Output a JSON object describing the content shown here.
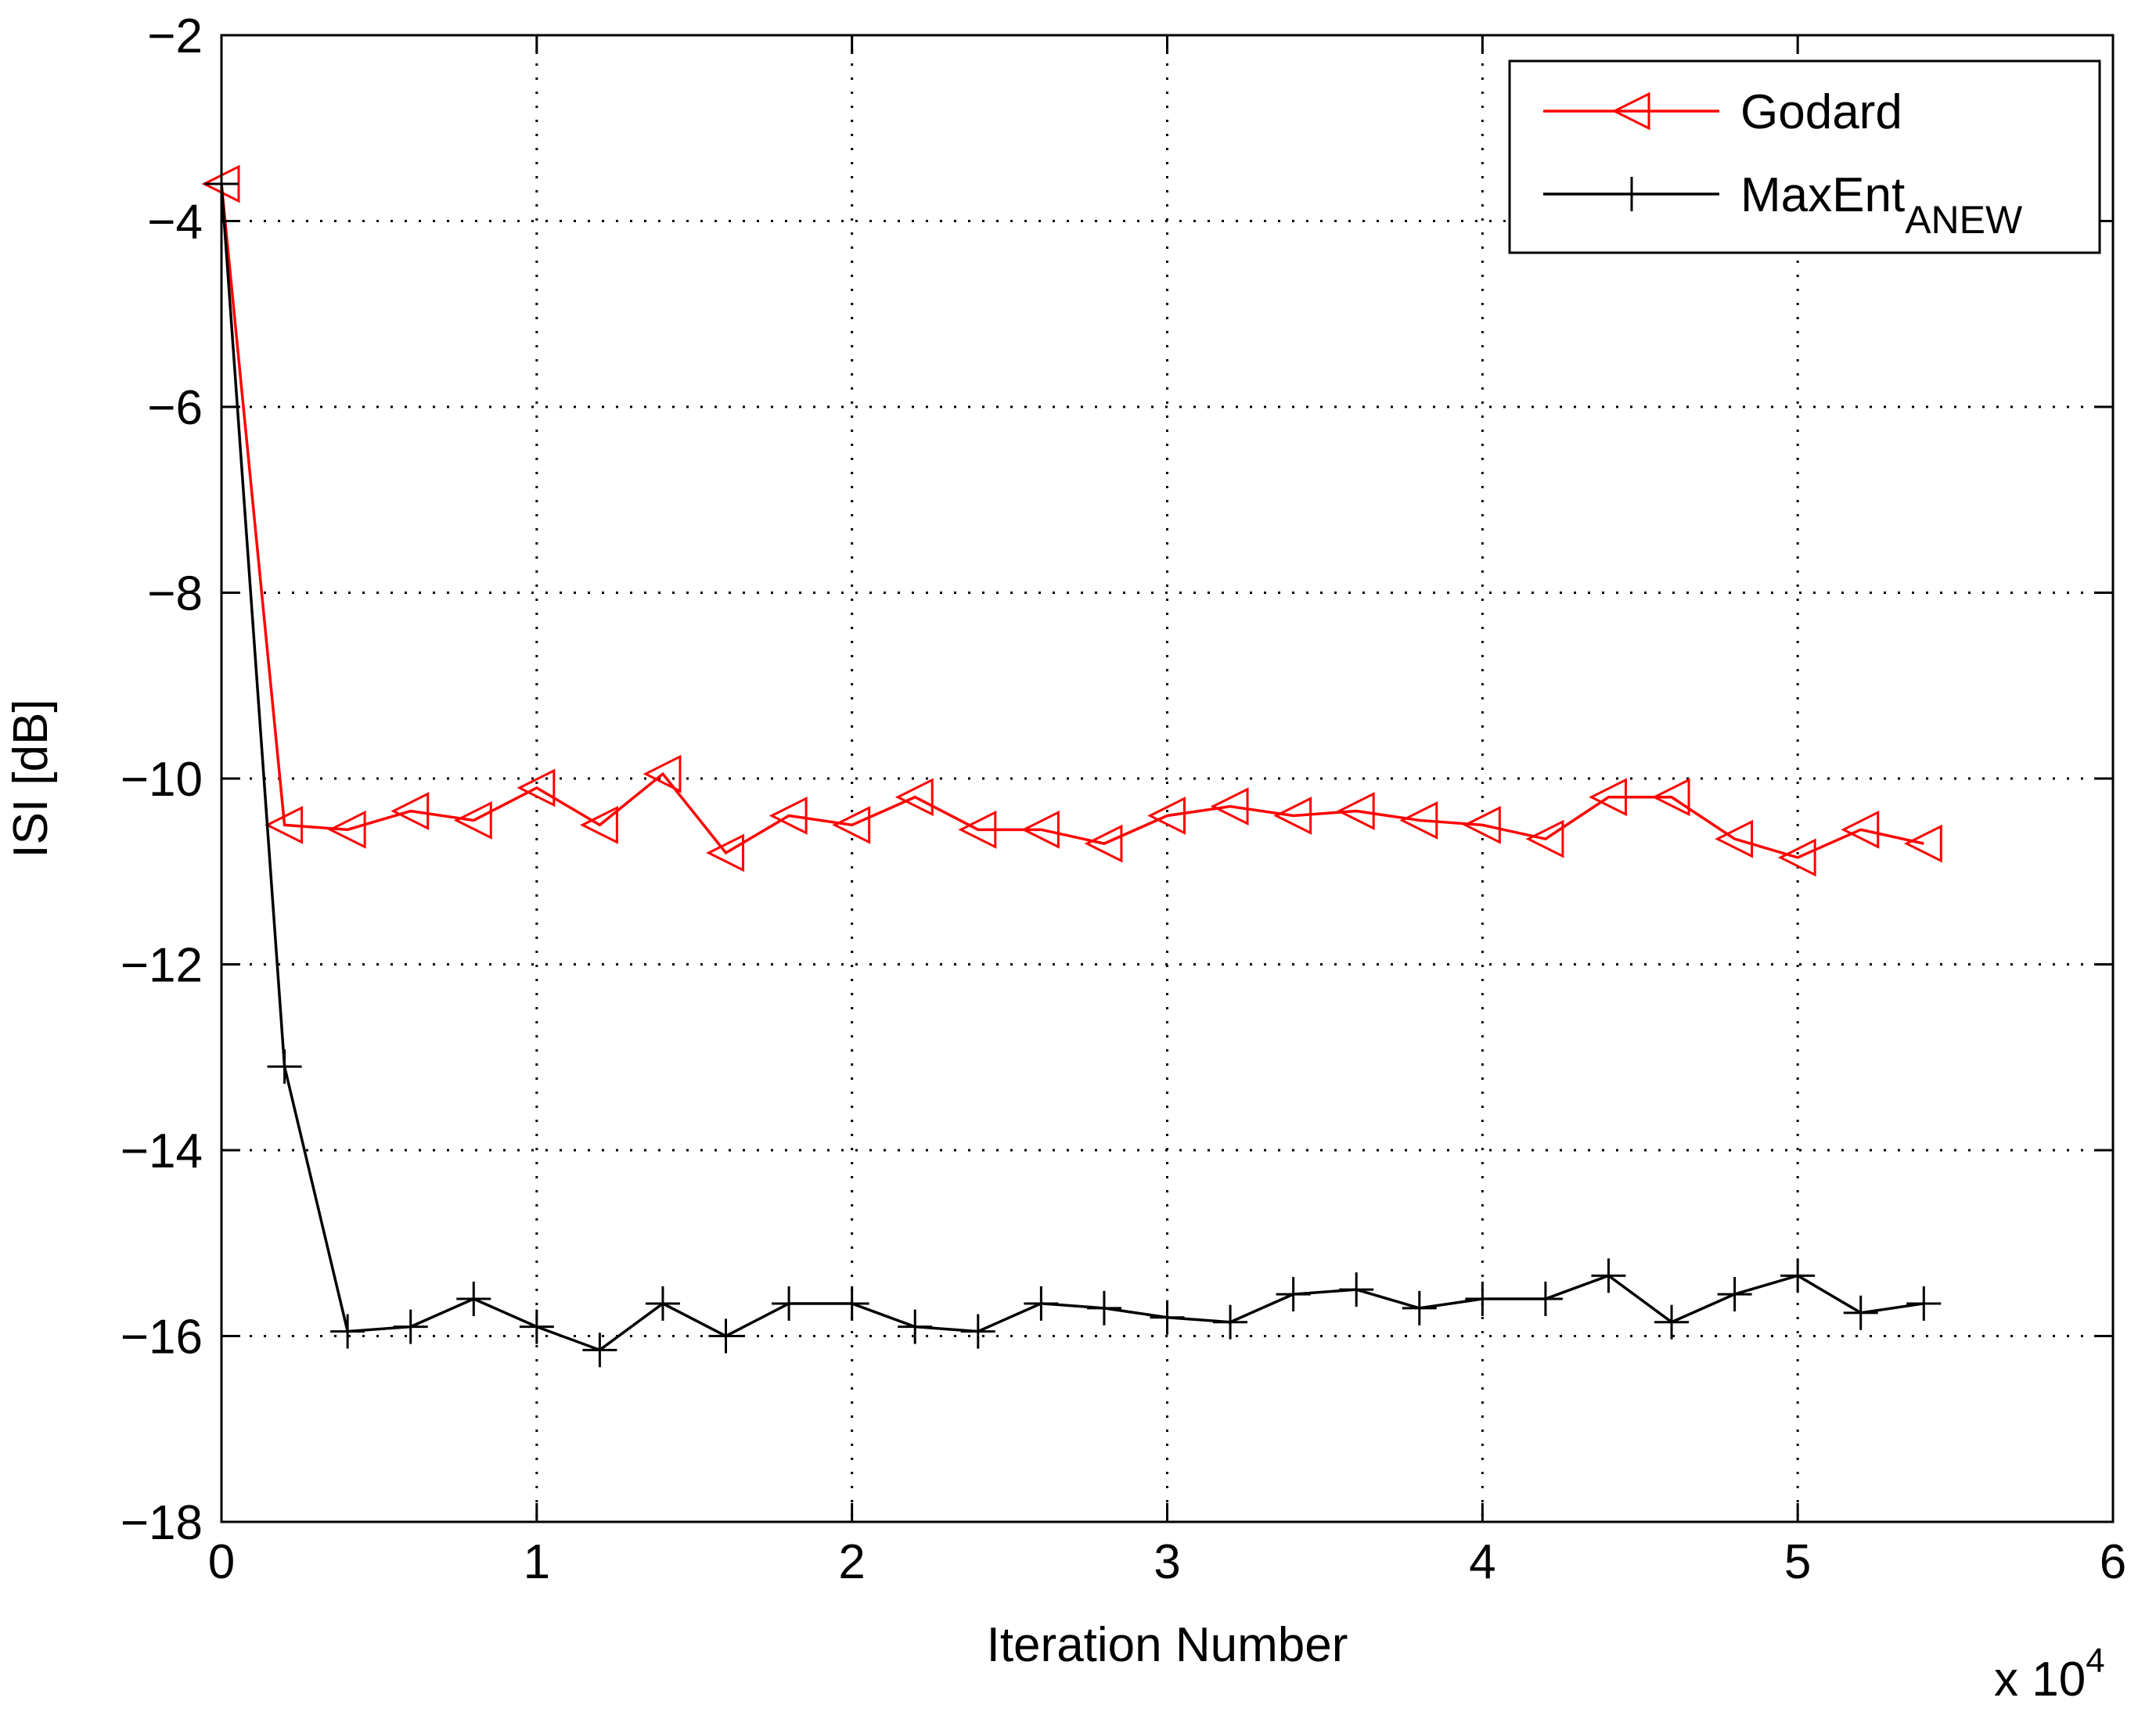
{
  "chart_data": {
    "type": "line",
    "title": "",
    "xlabel": "Iteration Number",
    "ylabel": "ISI [dB]",
    "x_exponent_label": "x 10",
    "x_exponent_power": "4",
    "xlim": [
      0,
      60000
    ],
    "ylim": [
      -18,
      -2
    ],
    "x_tick_values": [
      0,
      10000,
      20000,
      30000,
      40000,
      50000,
      60000
    ],
    "x_tick_labels": [
      "0",
      "1",
      "2",
      "3",
      "4",
      "5",
      "6"
    ],
    "y_tick_values": [
      -18,
      -16,
      -14,
      -12,
      -10,
      -8,
      -6,
      -4,
      -2
    ],
    "y_tick_labels": [
      "−18",
      "−16",
      "−14",
      "−12",
      "−10",
      "−8",
      "−6",
      "−4",
      "−2"
    ],
    "grid": true,
    "legend_position": "top-right",
    "x": [
      0,
      2000,
      4000,
      6000,
      8000,
      10000,
      12000,
      14000,
      16000,
      18000,
      20000,
      22000,
      24000,
      26000,
      28000,
      30000,
      32000,
      34000,
      36000,
      38000,
      40000,
      42000,
      44000,
      46000,
      48000,
      50000,
      52000,
      54000
    ],
    "series": [
      {
        "name": "Godard",
        "legend_label": "Godard",
        "color": "#ff0000",
        "marker": "triangle-left",
        "values": [
          -3.6,
          -10.5,
          -10.55,
          -10.35,
          -10.45,
          -10.1,
          -10.5,
          -9.95,
          -10.8,
          -10.4,
          -10.5,
          -10.2,
          -10.55,
          -10.55,
          -10.7,
          -10.4,
          -10.3,
          -10.4,
          -10.35,
          -10.45,
          -10.5,
          -10.65,
          -10.2,
          -10.2,
          -10.65,
          -10.85,
          -10.55,
          -10.7
        ]
      },
      {
        "name": "MaxEnt_ANEW",
        "legend_label": "MaxEnt",
        "legend_subscript": "ANEW",
        "color": "#000000",
        "marker": "plus",
        "values": [
          -3.6,
          -13.1,
          -15.95,
          -15.9,
          -15.6,
          -15.9,
          -16.15,
          -15.65,
          -16.0,
          -15.65,
          -15.65,
          -15.9,
          -15.95,
          -15.65,
          -15.7,
          -15.8,
          -15.85,
          -15.55,
          -15.5,
          -15.7,
          -15.6,
          -15.6,
          -15.35,
          -15.85,
          -15.55,
          -15.35,
          -15.75,
          -15.65
        ]
      }
    ]
  }
}
